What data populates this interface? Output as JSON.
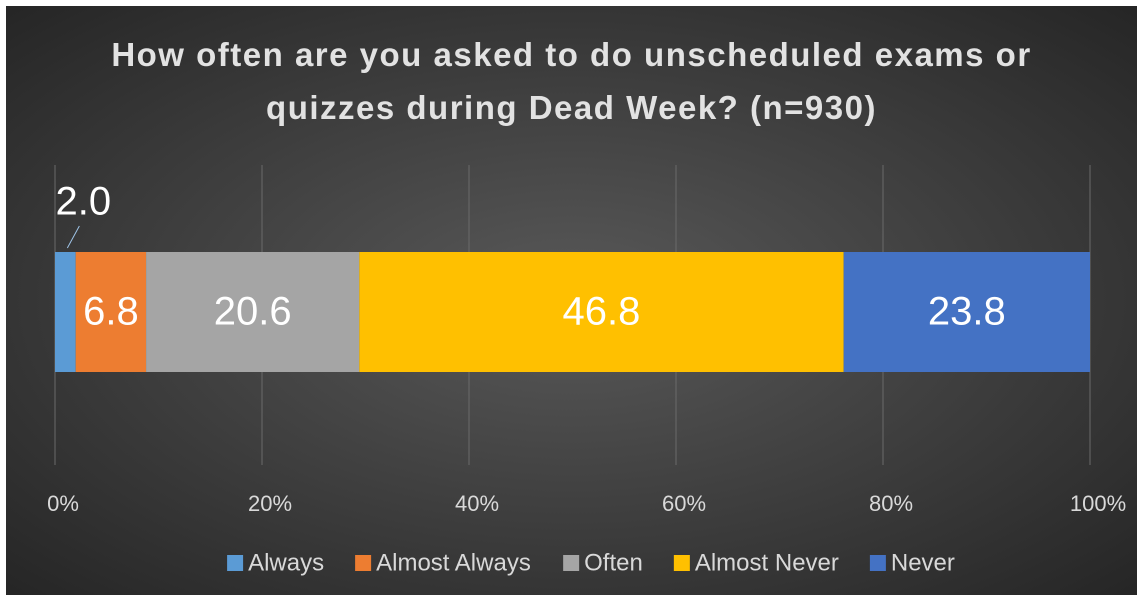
{
  "chart_data": {
    "type": "bar",
    "orientation": "horizontal",
    "stacked": true,
    "title": "How often are you asked to do unscheduled exams or quizzes during Dead Week? (n=930)",
    "series": [
      {
        "name": "Always",
        "color": "#5b9bd5",
        "values": [
          2.0
        ],
        "value_labels": [
          "2.0"
        ]
      },
      {
        "name": "Almost Always",
        "color": "#ed7d31",
        "values": [
          6.8
        ]
      },
      {
        "name": "Often",
        "color": "#a5a5a5",
        "values": [
          20.6
        ]
      },
      {
        "name": "Almost Never",
        "color": "#ffc000",
        "values": [
          46.8
        ]
      },
      {
        "name": "Never",
        "color": "#4472c4",
        "values": [
          23.8
        ]
      }
    ],
    "xlim": [
      0,
      100
    ],
    "xticks": [
      {
        "value": 0,
        "label": "0%"
      },
      {
        "value": 20,
        "label": "20%"
      },
      {
        "value": 40,
        "label": "40%"
      },
      {
        "value": 60,
        "label": "60%"
      },
      {
        "value": 80,
        "label": "80%"
      },
      {
        "value": 100,
        "label": "100%"
      }
    ],
    "grid": true,
    "legend": "bottom"
  }
}
